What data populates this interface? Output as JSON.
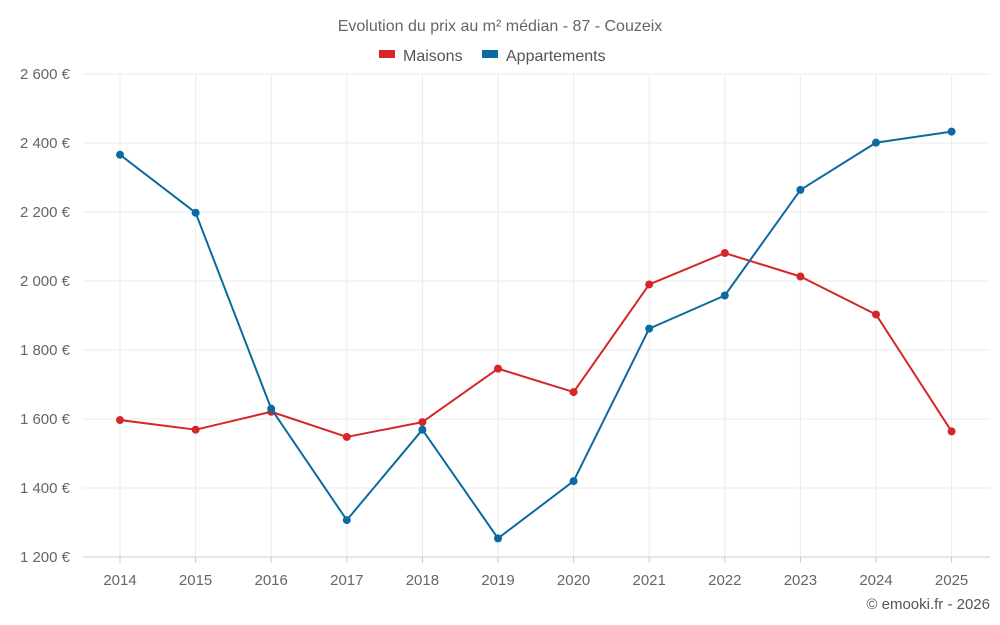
{
  "chart_data": {
    "type": "line",
    "title": "Evolution du prix au m² médian - 87 - Couzeix",
    "categories": [
      "2014",
      "2015",
      "2016",
      "2017",
      "2018",
      "2019",
      "2020",
      "2021",
      "2022",
      "2023",
      "2024",
      "2025"
    ],
    "series": [
      {
        "name": "Maisons",
        "color": "#d62728",
        "values": [
          1597,
          1569,
          1621,
          1548,
          1591,
          1746,
          1678,
          1990,
          2081,
          2013,
          1903,
          1564
        ]
      },
      {
        "name": "Appartements",
        "color": "#0b6aa0",
        "values": [
          2366,
          2198,
          1630,
          1307,
          1569,
          1254,
          1420,
          1862,
          1958,
          2264,
          2401,
          2433
        ]
      }
    ],
    "ylim": [
      1200,
      2600
    ],
    "yticks": [
      1200,
      1400,
      1600,
      1800,
      2000,
      2200,
      2400,
      2600
    ],
    "ytick_labels": [
      "1 200 €",
      "1 400 €",
      "1 600 €",
      "1 800 €",
      "2 000 €",
      "2 200 €",
      "2 400 €",
      "2 600 €"
    ],
    "xlabel": "",
    "ylabel": "",
    "grid": true,
    "legend": "top-center",
    "credit": "© emooki.fr - 2026"
  }
}
